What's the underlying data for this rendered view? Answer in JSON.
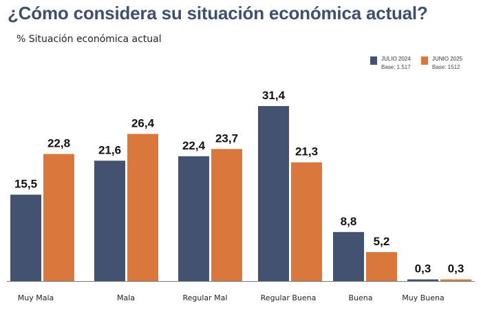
{
  "header": {
    "title": "¿Cómo considera su situación económica actual?",
    "subtitle": "% Situación económica actual"
  },
  "legend": [
    {
      "name": "JULIO 2024",
      "base": "Base: 1.517",
      "color": "#435271"
    },
    {
      "name": "JUNIO 2025",
      "base": "Base: 1512",
      "color": "#d9773c"
    }
  ],
  "chart_data": {
    "type": "bar",
    "title": "¿Cómo considera su situación económica actual?",
    "subtitle": "% Situación económica actual",
    "categories": [
      "Muy Mala",
      "Mala",
      "Regular Mal",
      "Regular Buena",
      "Buena",
      "Muy Buena"
    ],
    "series": [
      {
        "name": "JULIO 2024",
        "base": "Base: 1.517",
        "color": "#435271",
        "values": [
          15.5,
          21.6,
          22.4,
          31.4,
          8.8,
          0.3
        ],
        "labels": [
          "15,5",
          "21,6",
          "22,4",
          "31,4",
          "8,8",
          "0,3"
        ]
      },
      {
        "name": "JUNIO 2025",
        "base": "Base: 1512",
        "color": "#d9773c",
        "values": [
          22.8,
          26.4,
          23.7,
          21.3,
          5.2,
          0.3
        ],
        "labels": [
          "22,8",
          "26,4",
          "23,7",
          "21,3",
          "5,2",
          "0,3"
        ]
      }
    ],
    "xlabel": "",
    "ylabel": "",
    "ylim": [
      0,
      31.4
    ],
    "grid": false,
    "legend_position": "top-right"
  }
}
